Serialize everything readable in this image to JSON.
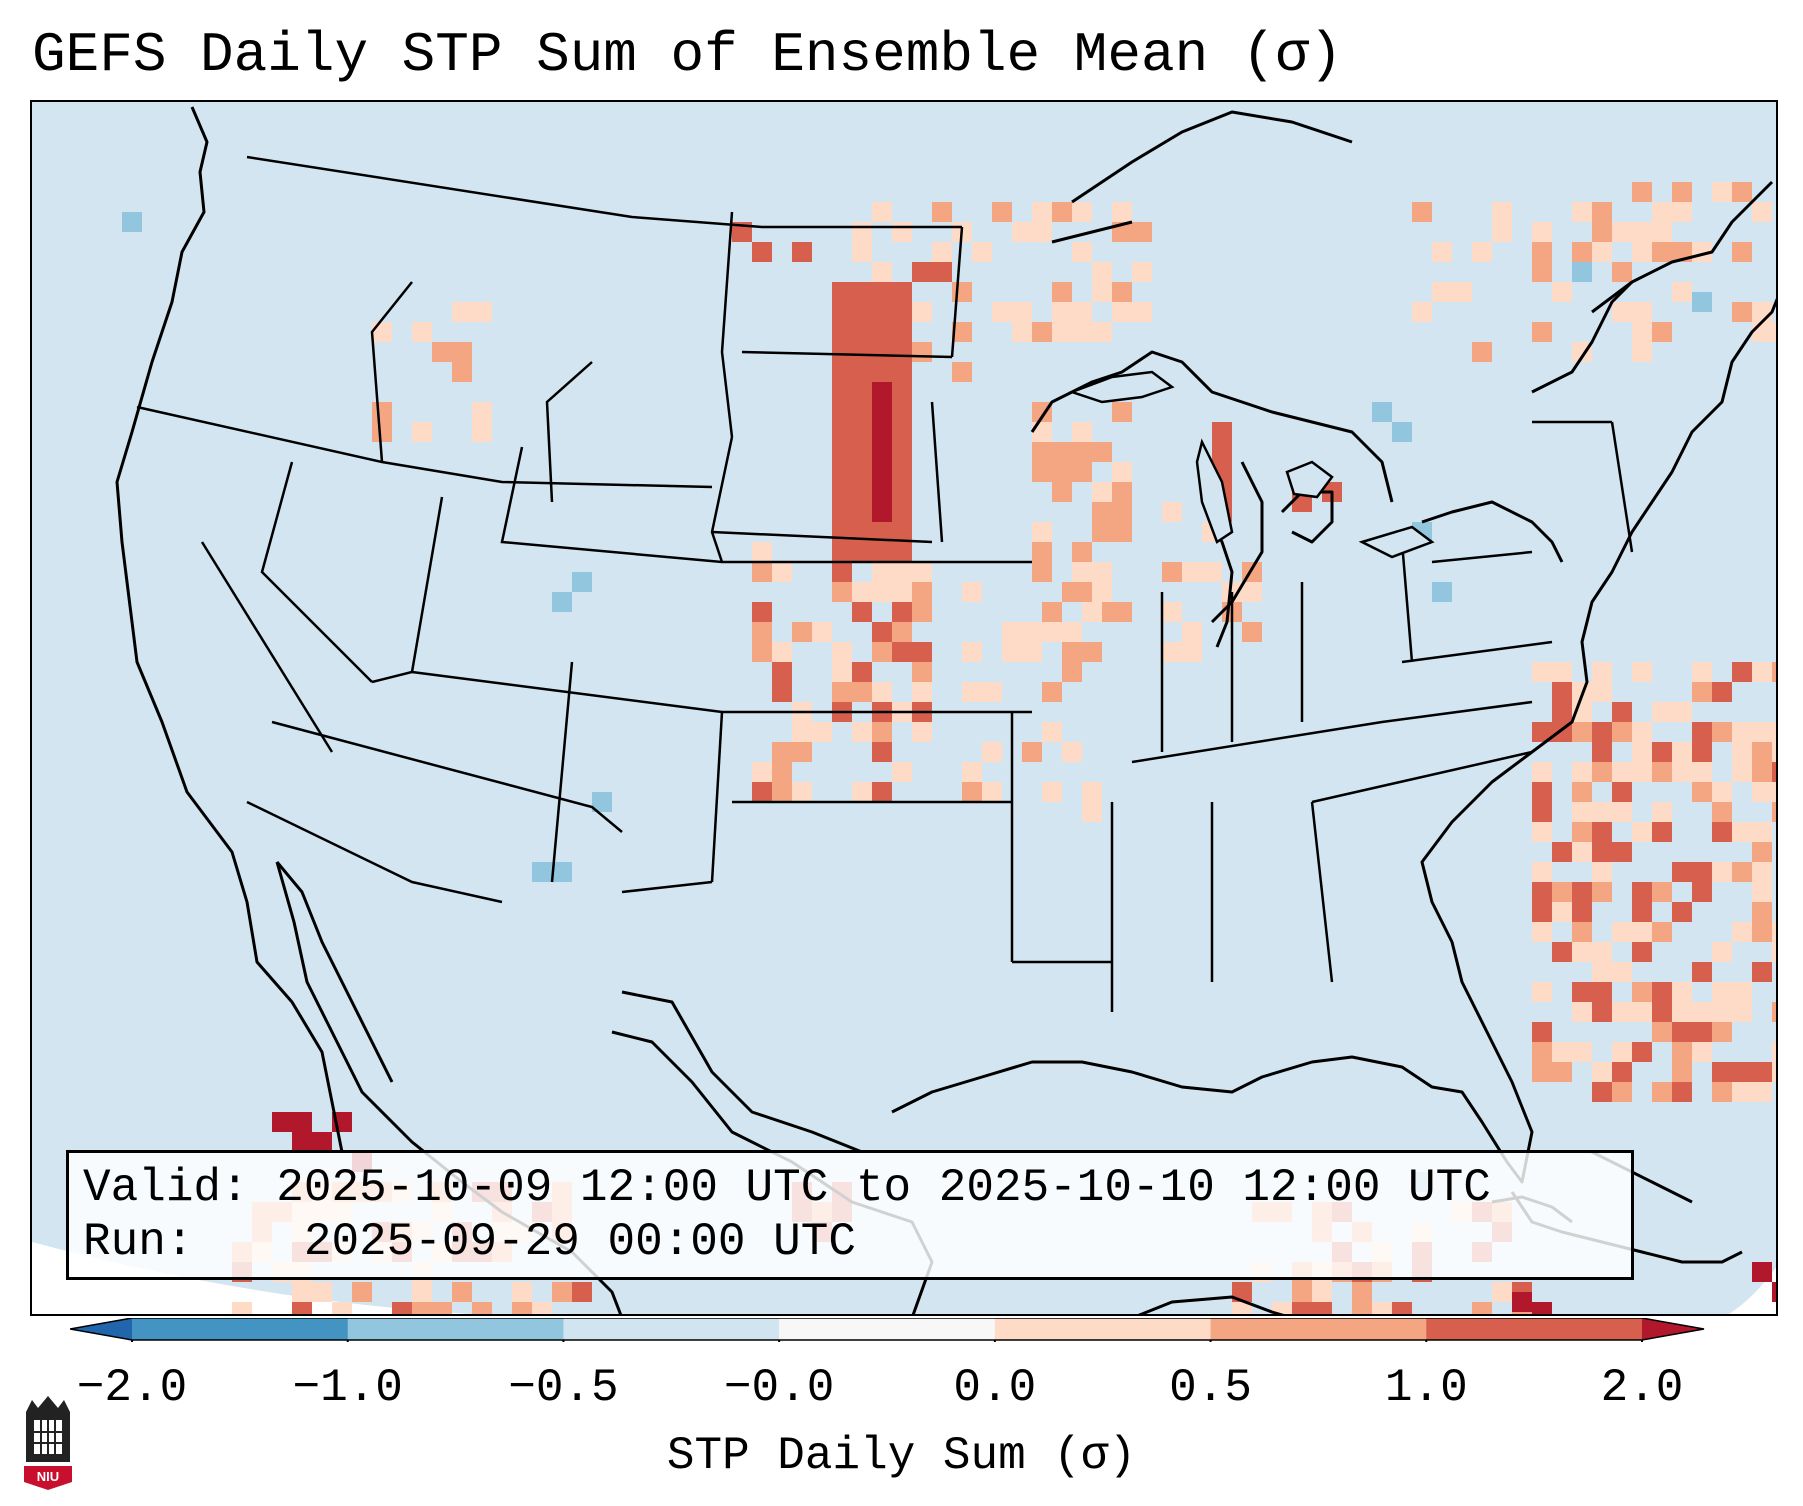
{
  "title": "GEFS Daily STP Sum of Ensemble Mean (σ)",
  "info": {
    "valid_label": "Valid:",
    "valid_value": "2025-10-09 12:00 UTC to 2025-10-10 12:00 UTC",
    "run_label": "Run:",
    "run_value": "2025-09-29 00:00 UTC"
  },
  "colorbar": {
    "label": "STP Daily Sum (σ)",
    "ticks": [
      "−2.0",
      "−1.0",
      "−0.5",
      "−0.0",
      "0.0",
      "0.5",
      "1.0",
      "2.0"
    ],
    "bins": [
      {
        "from": -2.0,
        "to": -1.0,
        "color": "#4393c3"
      },
      {
        "from": -1.0,
        "to": -0.5,
        "color": "#92c5de"
      },
      {
        "from": -0.5,
        "to": -0.0,
        "color": "#d1e5f0"
      },
      {
        "from": -0.0,
        "to": 0.0,
        "color": "#f7f7f7"
      },
      {
        "from": 0.0,
        "to": 0.5,
        "color": "#fddbc7"
      },
      {
        "from": 0.5,
        "to": 1.0,
        "color": "#f4a582"
      },
      {
        "from": 1.0,
        "to": 2.0,
        "color": "#d6604d"
      }
    ],
    "extend_low_color": "#2166ac",
    "extend_high_color": "#b2182b"
  },
  "map": {
    "background_color": "#d2e5f1",
    "outside_color": "#ffffff",
    "region": "Contiguous United States"
  },
  "logo_text": "NIU"
}
